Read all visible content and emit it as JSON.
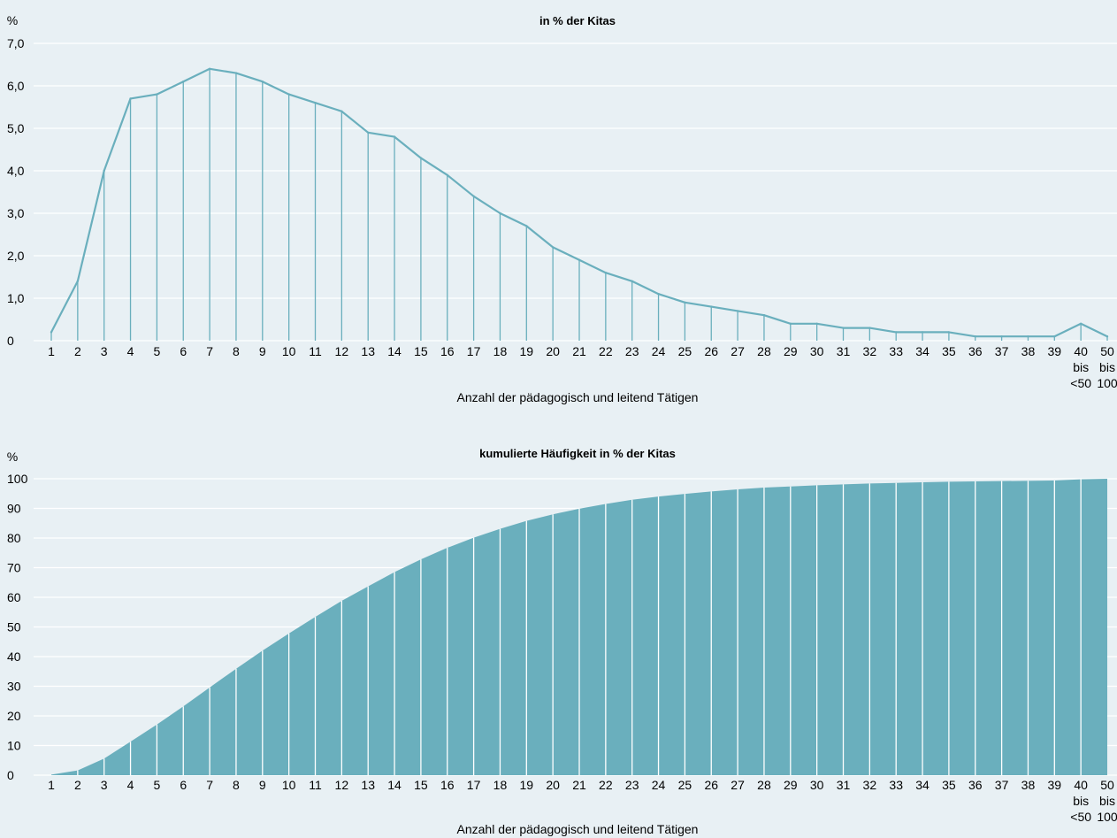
{
  "chart_data": [
    {
      "type": "line",
      "title": "in % der Kitas",
      "ylabel": "%",
      "xlabel": "Anzahl der pädagogisch und leitend Tätigen",
      "categories": [
        "1",
        "2",
        "3",
        "4",
        "5",
        "6",
        "7",
        "8",
        "9",
        "10",
        "11",
        "12",
        "13",
        "14",
        "15",
        "16",
        "17",
        "18",
        "19",
        "20",
        "21",
        "22",
        "23",
        "24",
        "25",
        "26",
        "27",
        "28",
        "29",
        "30",
        "31",
        "32",
        "33",
        "34",
        "35",
        "36",
        "37",
        "38",
        "39",
        "40 bis <50",
        "50 bis 100"
      ],
      "values": [
        0.2,
        1.4,
        4.0,
        5.7,
        5.8,
        6.1,
        6.4,
        6.3,
        6.1,
        5.8,
        5.6,
        5.4,
        4.9,
        4.8,
        4.3,
        3.9,
        3.4,
        3.0,
        2.7,
        2.2,
        1.9,
        1.6,
        1.4,
        1.1,
        0.9,
        0.8,
        0.7,
        0.6,
        0.4,
        0.4,
        0.3,
        0.3,
        0.2,
        0.2,
        0.2,
        0.1,
        0.1,
        0.1,
        0.1,
        0.4,
        0.1
      ],
      "ylim": [
        0,
        7
      ],
      "yticks": [
        "0",
        "1,0",
        "2,0",
        "3,0",
        "4,0",
        "5,0",
        "6,0",
        "7,0"
      ],
      "grid": true,
      "color": "#6aafbd"
    },
    {
      "type": "area",
      "title": "kumulierte Häufigkeit in % der Kitas",
      "ylabel": "%",
      "xlabel": "Anzahl der pädagogisch und leitend Tätigen",
      "categories": [
        "1",
        "2",
        "3",
        "4",
        "5",
        "6",
        "7",
        "8",
        "9",
        "10",
        "11",
        "12",
        "13",
        "14",
        "15",
        "16",
        "17",
        "18",
        "19",
        "20",
        "21",
        "22",
        "23",
        "24",
        "25",
        "26",
        "27",
        "28",
        "29",
        "30",
        "31",
        "32",
        "33",
        "34",
        "35",
        "36",
        "37",
        "38",
        "39",
        "40 bis <50",
        "50 bis 100"
      ],
      "values": [
        0.2,
        1.6,
        5.6,
        11.3,
        17.1,
        23.2,
        29.6,
        35.9,
        42.0,
        47.8,
        53.4,
        58.8,
        63.7,
        68.5,
        72.8,
        76.7,
        80.1,
        83.1,
        85.8,
        88.0,
        89.9,
        91.5,
        92.9,
        94.0,
        94.9,
        95.7,
        96.4,
        97.0,
        97.4,
        97.8,
        98.1,
        98.4,
        98.6,
        98.8,
        99.0,
        99.1,
        99.2,
        99.3,
        99.4,
        99.8,
        100
      ],
      "ylim": [
        0,
        100
      ],
      "yticks": [
        "0",
        "10",
        "20",
        "30",
        "40",
        "50",
        "60",
        "70",
        "80",
        "90",
        "100"
      ],
      "grid": true,
      "color": "#6aafbd"
    }
  ]
}
